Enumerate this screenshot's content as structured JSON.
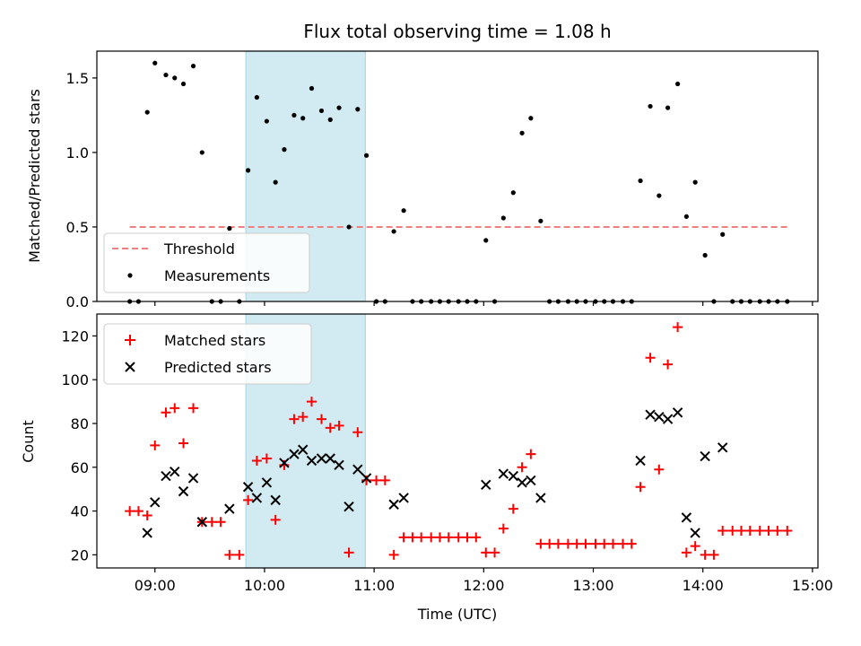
{
  "chart_data": [
    {
      "type": "scatter",
      "title": "Flux total observing time = 1.08 h",
      "xlabel": "",
      "ylabel": "Matched/Predicted stars",
      "ylim": [
        0,
        1.68
      ],
      "yticks": [
        0.0,
        0.5,
        1.0,
        1.5
      ],
      "ytick_labels": [
        "0.0",
        "0.5",
        "1.0",
        "1.5"
      ],
      "x_axis": "time of day (hours, UTC)",
      "xlim": [
        8.47,
        15.05
      ],
      "shaded_interval": [
        9.83,
        10.92
      ],
      "shade_color": "#add8e6",
      "legend_location": "lower-left",
      "series": [
        {
          "name": "Threshold",
          "kind": "dashed-line",
          "color": "#f08080",
          "x": [
            8.77,
            14.77
          ],
          "y": [
            0.5,
            0.5
          ]
        },
        {
          "name": "Measurements",
          "kind": "dots",
          "color": "#000000",
          "x": [
            8.77,
            8.85,
            8.93,
            9.0,
            9.1,
            9.18,
            9.26,
            9.35,
            9.43,
            9.52,
            9.6,
            9.68,
            9.77,
            9.85,
            9.93,
            10.02,
            10.1,
            10.18,
            10.27,
            10.35,
            10.43,
            10.52,
            10.6,
            10.68,
            10.77,
            10.85,
            10.93,
            11.02,
            11.1,
            11.18,
            11.27,
            11.35,
            11.43,
            11.52,
            11.6,
            11.68,
            11.77,
            11.85,
            11.93,
            12.02,
            12.1,
            12.18,
            12.27,
            12.35,
            12.43,
            12.52,
            12.6,
            12.68,
            12.77,
            12.85,
            12.93,
            13.02,
            13.1,
            13.18,
            13.27,
            13.35,
            13.43,
            13.52,
            13.6,
            13.68,
            13.77,
            13.85,
            13.93,
            14.02,
            14.1,
            14.18,
            14.27,
            14.35,
            14.43,
            14.52,
            14.6,
            14.68,
            14.77
          ],
          "y": [
            0,
            0,
            1.27,
            1.6,
            1.52,
            1.5,
            1.46,
            1.58,
            1.0,
            0,
            0,
            0.49,
            0,
            0.88,
            1.37,
            1.21,
            0.8,
            1.02,
            1.25,
            1.23,
            1.43,
            1.28,
            1.22,
            1.3,
            0.5,
            1.29,
            0.98,
            0,
            0,
            0.47,
            0.61,
            0,
            0,
            0,
            0,
            0,
            0,
            0,
            0,
            0.41,
            0,
            0.56,
            0.73,
            1.13,
            1.23,
            0.54,
            0,
            0,
            0,
            0,
            0,
            0,
            0,
            0,
            0,
            0,
            0.81,
            1.31,
            0.71,
            1.3,
            1.46,
            0.57,
            0.8,
            0.31,
            0,
            0.45,
            0,
            0,
            0,
            0,
            0,
            0,
            0
          ]
        }
      ]
    },
    {
      "type": "scatter",
      "title": "",
      "xlabel": "Time (UTC)",
      "ylabel": "Count",
      "ylim": [
        14,
        130
      ],
      "yticks": [
        20,
        40,
        60,
        80,
        100,
        120
      ],
      "ytick_labels": [
        "20",
        "40",
        "60",
        "80",
        "100",
        "120"
      ],
      "xticks": [
        9,
        10,
        11,
        12,
        13,
        14,
        15
      ],
      "xtick_labels": [
        "09:00",
        "10:00",
        "11:00",
        "12:00",
        "13:00",
        "14:00",
        "15:00"
      ],
      "xlim": [
        8.47,
        15.05
      ],
      "shaded_interval": [
        9.83,
        10.92
      ],
      "shade_color": "#add8e6",
      "legend_location": "upper-left",
      "series": [
        {
          "name": "Matched stars",
          "marker": "plus",
          "color": "#ff0000",
          "x": [
            8.77,
            8.85,
            8.93,
            9.0,
            9.1,
            9.18,
            9.26,
            9.35,
            9.43,
            9.52,
            9.6,
            9.68,
            9.77,
            9.85,
            9.93,
            10.02,
            10.1,
            10.18,
            10.27,
            10.35,
            10.43,
            10.52,
            10.6,
            10.68,
            10.77,
            10.85,
            10.93,
            11.02,
            11.1,
            11.18,
            11.27,
            11.35,
            11.43,
            11.52,
            11.6,
            11.68,
            11.77,
            11.85,
            11.93,
            12.02,
            12.1,
            12.18,
            12.27,
            12.35,
            12.43,
            12.52,
            12.6,
            12.68,
            12.77,
            12.85,
            12.93,
            13.02,
            13.1,
            13.18,
            13.27,
            13.35,
            13.43,
            13.52,
            13.6,
            13.68,
            13.77,
            13.85,
            13.93,
            14.02,
            14.1,
            14.18,
            14.27,
            14.35,
            14.43,
            14.52,
            14.6,
            14.68,
            14.77
          ],
          "y": [
            40,
            40,
            38,
            70,
            85,
            87,
            71,
            87,
            35,
            35,
            35,
            20,
            20,
            45,
            63,
            64,
            36,
            61,
            82,
            83,
            90,
            82,
            78,
            79,
            21,
            76,
            54,
            54,
            54,
            20,
            28,
            28,
            28,
            28,
            28,
            28,
            28,
            28,
            28,
            21,
            21,
            32,
            41,
            60,
            66,
            25,
            25,
            25,
            25,
            25,
            25,
            25,
            25,
            25,
            25,
            25,
            51,
            110,
            59,
            107,
            124,
            21,
            24,
            20,
            20,
            31,
            31,
            31,
            31,
            31,
            31,
            31,
            31
          ]
        },
        {
          "name": "Predicted stars",
          "marker": "x",
          "color": "#000000",
          "x": [
            8.93,
            9.0,
            9.1,
            9.18,
            9.26,
            9.35,
            9.43,
            9.68,
            9.85,
            9.93,
            10.02,
            10.1,
            10.18,
            10.27,
            10.35,
            10.43,
            10.52,
            10.6,
            10.68,
            10.77,
            10.85,
            10.93,
            11.18,
            11.27,
            12.02,
            12.18,
            12.27,
            12.35,
            12.43,
            12.52,
            13.43,
            13.52,
            13.6,
            13.68,
            13.77,
            13.85,
            13.93,
            14.02,
            14.18
          ],
          "y": [
            30,
            44,
            56,
            58,
            49,
            55,
            35,
            41,
            51,
            46,
            53,
            45,
            62,
            66,
            68,
            63,
            64,
            64,
            61,
            42,
            59,
            55,
            43,
            46,
            52,
            57,
            56,
            53,
            54,
            46,
            63,
            84,
            83,
            82,
            85,
            37,
            30,
            65,
            69
          ]
        }
      ]
    }
  ]
}
